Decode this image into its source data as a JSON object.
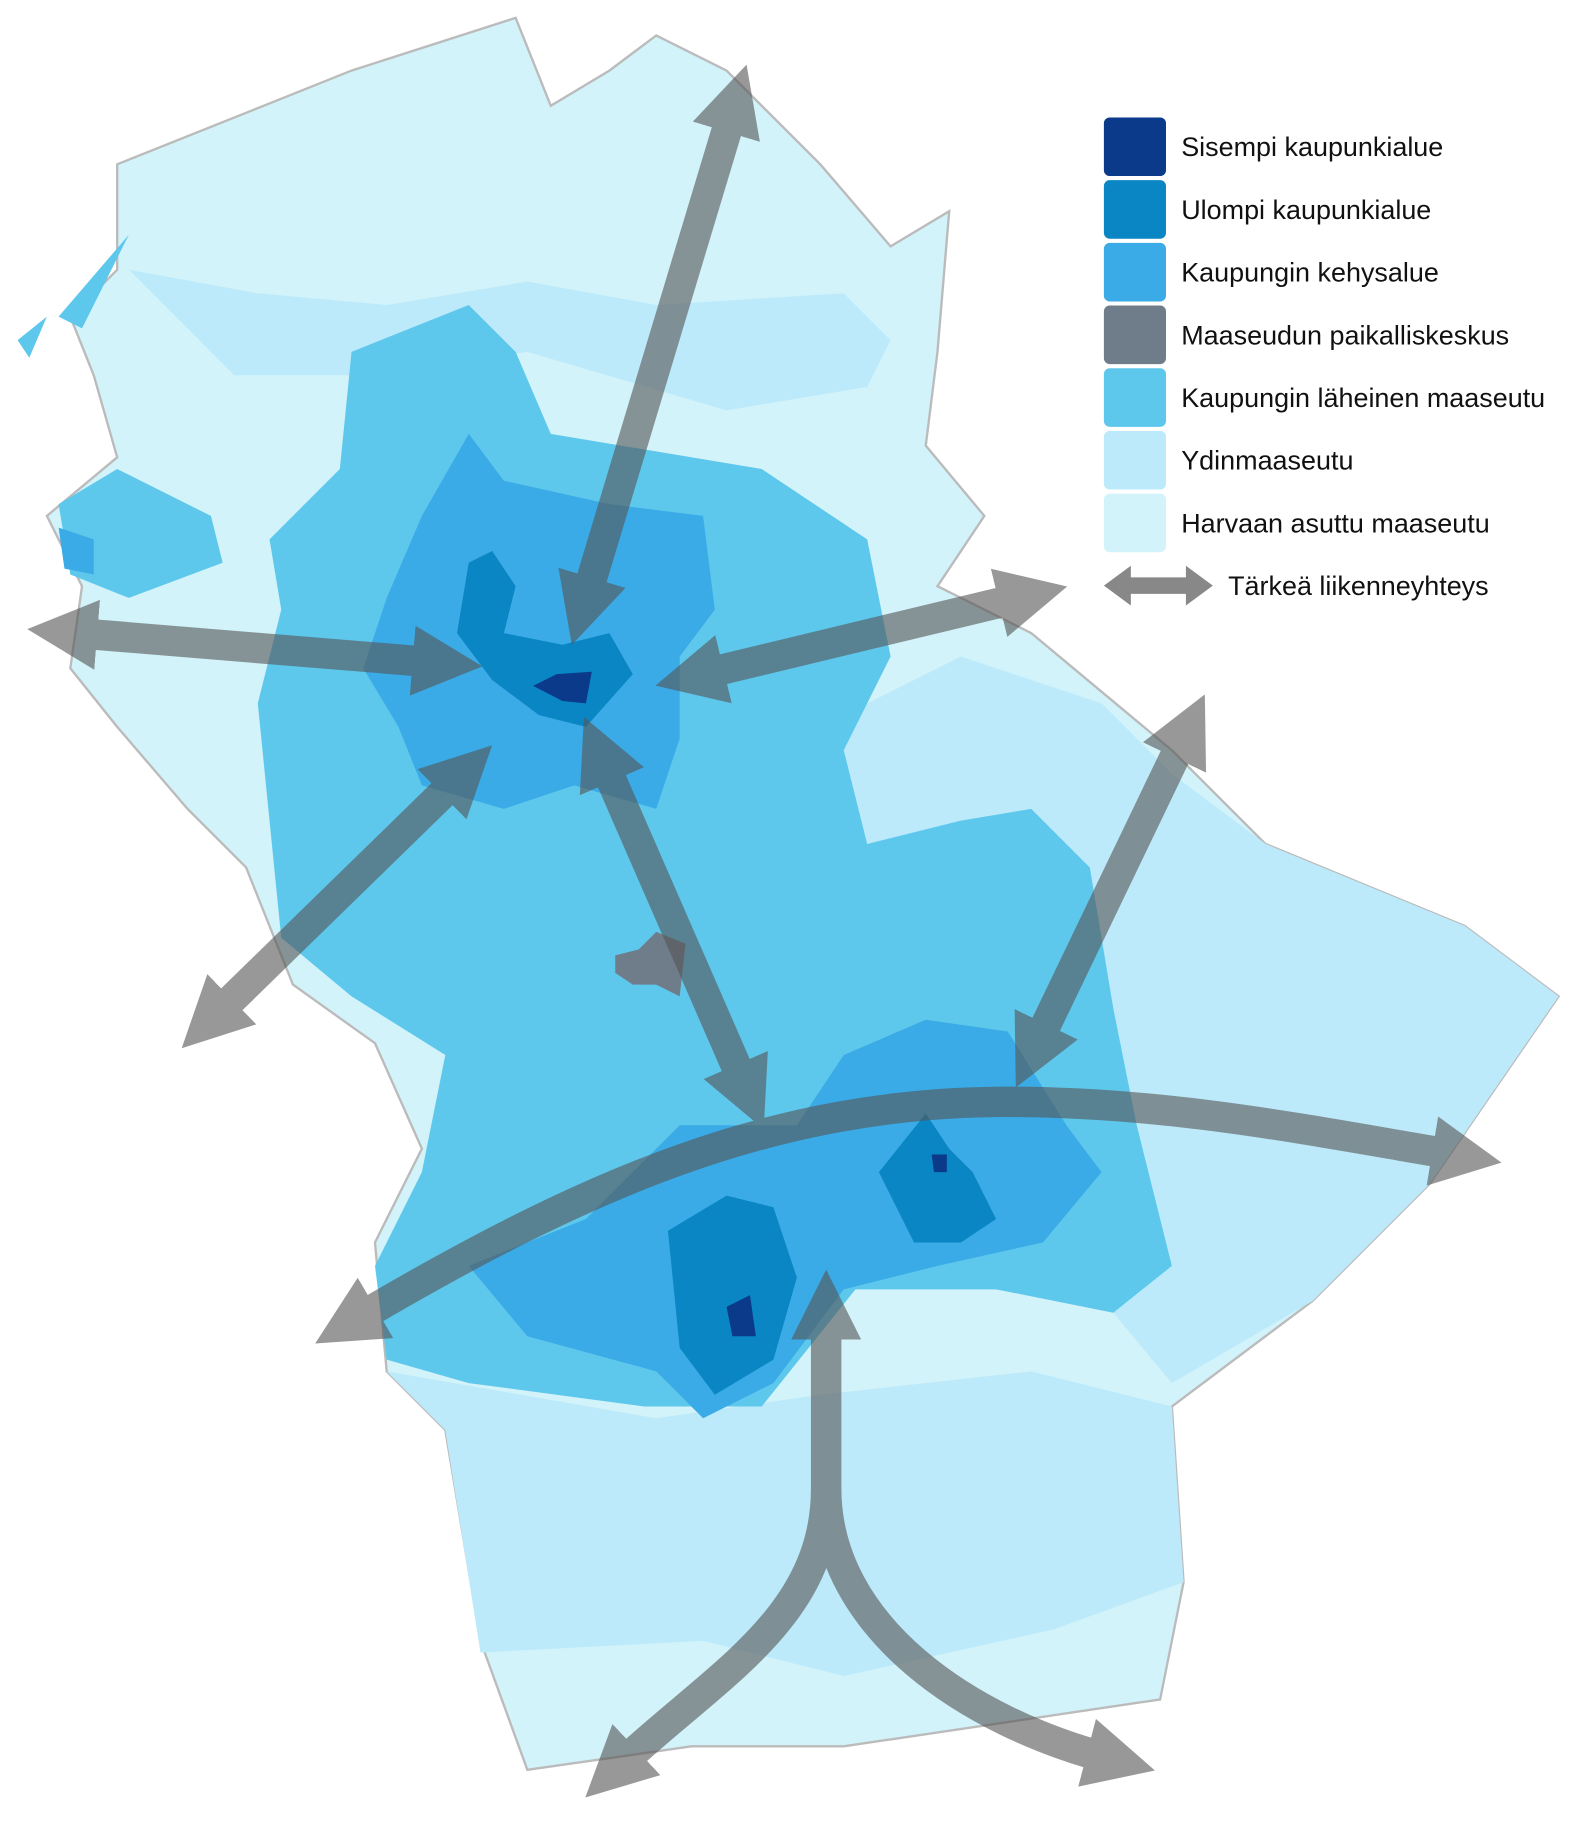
{
  "legend": {
    "items": [
      {
        "label": "Sisempi kaupunkialue",
        "color": "#0b3a8a"
      },
      {
        "label": "Ulompi kaupunkialue",
        "color": "#0a86c4"
      },
      {
        "label": "Kaupungin kehysalue",
        "color": "#3aabe6"
      },
      {
        "label": "Maaseudun paikalliskeskus",
        "color": "#6f7d8a"
      },
      {
        "label": "Kaupungin läheinen maaseutu",
        "color": "#5ec8ec"
      },
      {
        "label": "Ydinmaaseutu",
        "color": "#bdeafa"
      },
      {
        "label": "Harvaan asuttu maaseutu",
        "color": "#d2f3fa"
      }
    ],
    "connection": {
      "label": "Tärkeä liikenneyhteys"
    }
  }
}
